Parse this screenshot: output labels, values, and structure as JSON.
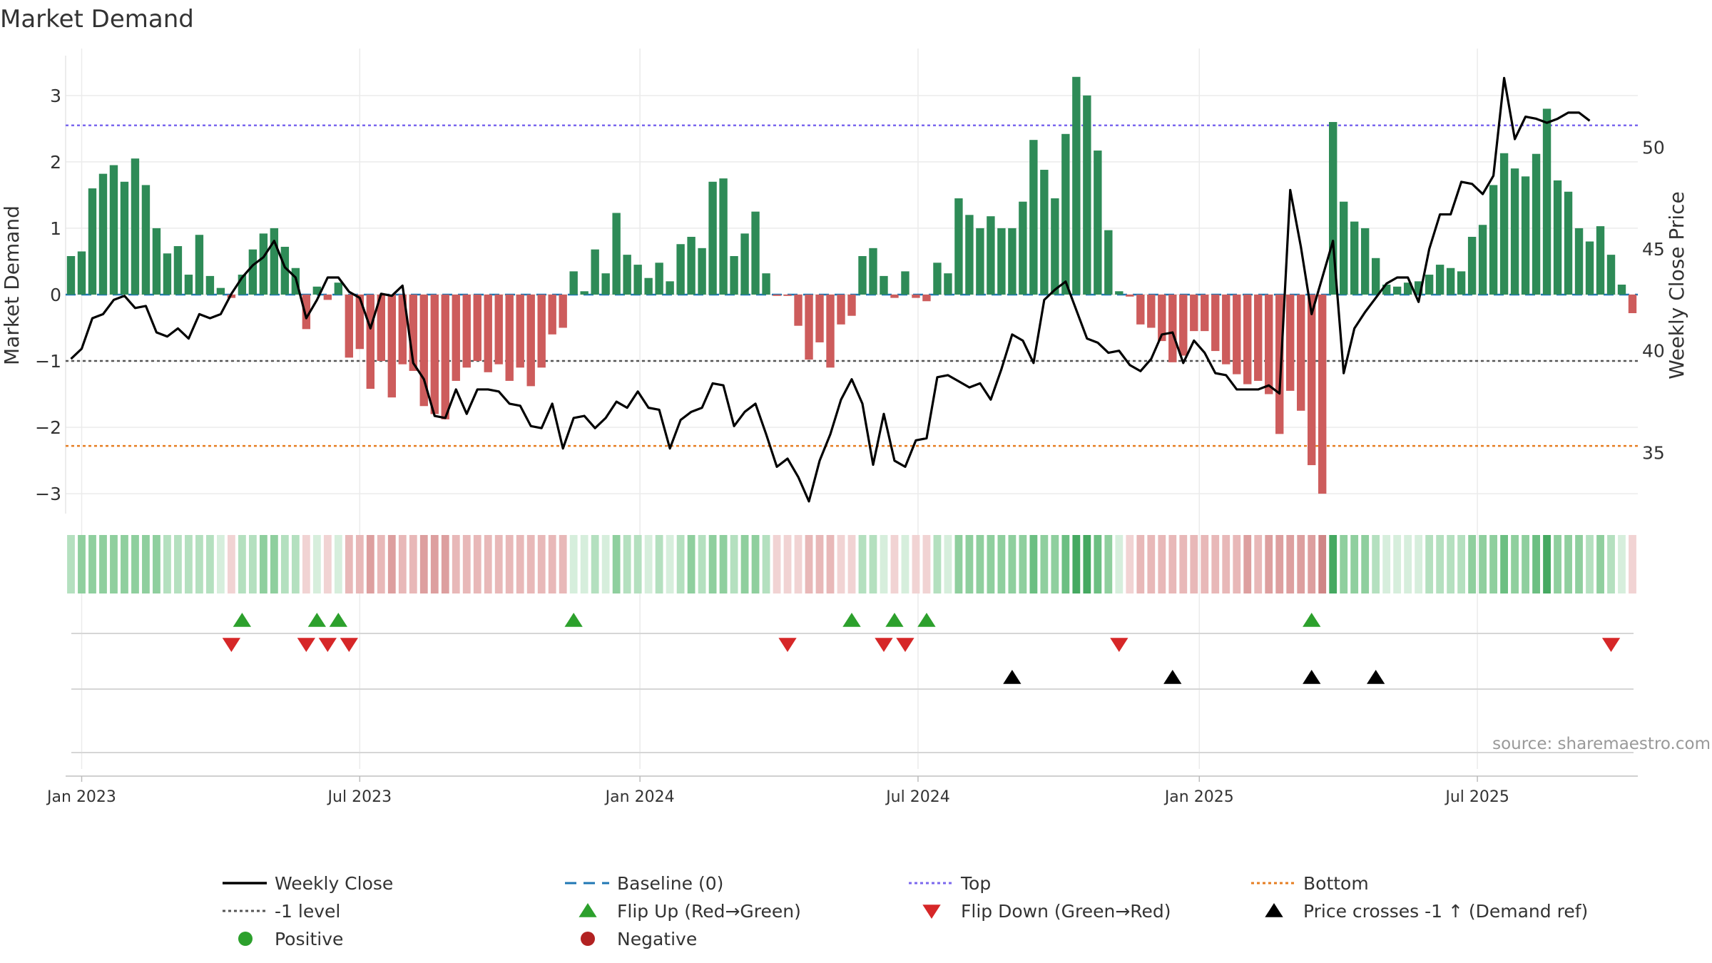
{
  "chart_data": {
    "type": "bar",
    "title": "Market Demand",
    "ylabel": "Market Demand",
    "y2label": "Weekly Close Price",
    "source": "source: sharemaestro.com",
    "ylim": [
      -3.3,
      3.6
    ],
    "y2lim": [
      32.0,
      54.5
    ],
    "yticks": [
      {
        "v": 3,
        "label": "3"
      },
      {
        "v": 2,
        "label": "2"
      },
      {
        "v": 1,
        "label": "1"
      },
      {
        "v": 0,
        "label": "0"
      },
      {
        "v": -1,
        "label": "−1"
      },
      {
        "v": -2,
        "label": "−2"
      },
      {
        "v": -3,
        "label": "−3"
      }
    ],
    "y2ticks": [
      {
        "v": 50,
        "label": "50"
      },
      {
        "v": 45,
        "label": "45"
      },
      {
        "v": 40,
        "label": "40"
      },
      {
        "v": 35,
        "label": "35"
      }
    ],
    "xticks": [
      {
        "week": 1.5,
        "label": "Jan 2023"
      },
      {
        "week": 27.5,
        "label": "Jul 2023"
      },
      {
        "week": 53.7,
        "label": "Jan 2024"
      },
      {
        "week": 79.7,
        "label": "Jul 2024"
      },
      {
        "week": 106,
        "label": "Jan 2025"
      },
      {
        "week": 132,
        "label": "Jul 2025"
      }
    ],
    "levels": {
      "baseline": 0,
      "top": 2.55,
      "minus_one": -1,
      "bottom": -2.28
    },
    "colors": {
      "positive": "#2e8b57",
      "negative": "#cd5c5c",
      "close": "#000000",
      "top": "#7b68ee",
      "bottom": "#e67e22",
      "minus_one": "#555555",
      "baseline": "#1f77b4",
      "flip_up": "#2ca02c",
      "flip_down": "#d62728",
      "cross": "#000000",
      "positive_dot": "#2ca02c",
      "negative_dot": "#b22222"
    },
    "demand": [
      0.58,
      0.65,
      1.6,
      1.82,
      1.95,
      1.7,
      2.05,
      1.65,
      1.0,
      0.62,
      0.73,
      0.3,
      0.9,
      0.28,
      0.1,
      -0.05,
      0.3,
      0.68,
      0.92,
      1.0,
      0.72,
      0.4,
      -0.52,
      0.12,
      -0.08,
      0.18,
      -0.95,
      -0.82,
      -1.42,
      -1.0,
      -1.55,
      -1.05,
      -1.15,
      -1.68,
      -1.8,
      -1.88,
      -1.3,
      -1.1,
      -1.0,
      -1.17,
      -1.05,
      -1.3,
      -1.1,
      -1.38,
      -1.1,
      -0.6,
      -0.5,
      0.35,
      0.05,
      0.68,
      0.32,
      1.23,
      0.6,
      0.45,
      0.25,
      0.48,
      0.2,
      0.76,
      0.87,
      0.7,
      1.7,
      1.75,
      0.58,
      0.92,
      1.25,
      0.32,
      -0.02,
      -0.02,
      -0.47,
      -0.98,
      -0.72,
      -1.1,
      -0.45,
      -0.32,
      0.58,
      0.7,
      0.28,
      -0.05,
      0.35,
      -0.05,
      -0.1,
      0.48,
      0.32,
      1.45,
      1.2,
      1.0,
      1.18,
      1.0,
      1.0,
      1.4,
      2.33,
      1.88,
      1.45,
      2.42,
      3.28,
      3.0,
      2.17,
      0.97,
      0.05,
      -0.03,
      -0.45,
      -0.5,
      -0.7,
      -1.02,
      -0.92,
      -0.55,
      -0.55,
      -0.85,
      -1.05,
      -1.2,
      -1.35,
      -1.3,
      -1.5,
      -2.1,
      -1.45,
      -1.75,
      -2.57,
      -3.0,
      2.6,
      1.4,
      1.1,
      1.0,
      0.55,
      0.15,
      0.12,
      0.18,
      0.2,
      0.3,
      0.45,
      0.4,
      0.35,
      0.87,
      1.05,
      1.65,
      2.13,
      1.9,
      1.78,
      2.12,
      2.8,
      1.72,
      1.55,
      1.0,
      0.8,
      1.03,
      0.6,
      0.15,
      -0.28
    ],
    "close": [
      39.6,
      40.1,
      41.6,
      41.8,
      42.5,
      42.7,
      42.1,
      42.2,
      40.9,
      40.7,
      41.1,
      40.6,
      41.8,
      41.6,
      41.8,
      42.8,
      43.6,
      44.2,
      44.6,
      45.4,
      44.1,
      43.6,
      41.6,
      42.5,
      43.6,
      43.6,
      42.9,
      42.6,
      41.1,
      42.8,
      42.7,
      43.2,
      39.4,
      38.6,
      36.8,
      36.7,
      38.1,
      36.9,
      38.1,
      38.1,
      38.0,
      37.4,
      37.3,
      36.3,
      36.2,
      37.4,
      35.2,
      36.7,
      36.8,
      36.2,
      36.7,
      37.5,
      37.2,
      38.0,
      37.2,
      37.1,
      35.2,
      36.6,
      37.0,
      37.2,
      38.4,
      38.3,
      36.3,
      37.0,
      37.4,
      35.9,
      34.3,
      34.7,
      33.8,
      32.6,
      34.6,
      35.9,
      37.6,
      38.6,
      37.4,
      34.4,
      36.9,
      34.6,
      34.3,
      35.6,
      35.7,
      38.7,
      38.8,
      38.5,
      38.2,
      38.4,
      37.6,
      39.1,
      40.8,
      40.5,
      39.4,
      42.5,
      43.0,
      43.4,
      42.0,
      40.6,
      40.4,
      39.9,
      40.0,
      39.3,
      39.0,
      39.6,
      40.8,
      40.9,
      39.4,
      40.5,
      39.9,
      38.9,
      38.8,
      38.1,
      38.1,
      38.1,
      38.3,
      37.9,
      47.9,
      45.1,
      41.8,
      43.6,
      45.4,
      38.9,
      41.1,
      41.9,
      42.6,
      43.3,
      43.6,
      43.6,
      42.4,
      45.0,
      46.7,
      46.7,
      48.3,
      48.2,
      47.7,
      48.6,
      53.4,
      50.4,
      51.5,
      51.4,
      51.2,
      51.4,
      51.7,
      51.7,
      51.3
    ],
    "strip_levels": [
      2,
      3,
      3,
      3,
      3,
      3,
      3,
      3,
      3,
      2,
      2,
      2,
      2,
      2,
      1,
      -1,
      2,
      2,
      3,
      3,
      2,
      2,
      -1,
      1,
      -1,
      1,
      -2,
      -2,
      -3,
      -2,
      -3,
      -2,
      -2,
      -3,
      -3,
      -3,
      -2,
      -2,
      -2,
      -2,
      -2,
      -2,
      -2,
      -2,
      -2,
      -2,
      -2,
      1,
      1,
      2,
      1,
      3,
      2,
      2,
      1,
      2,
      1,
      2,
      3,
      2,
      3,
      3,
      2,
      3,
      3,
      2,
      -1,
      -1,
      -1,
      -2,
      -2,
      -2,
      -1,
      -1,
      2,
      2,
      1,
      -1,
      1,
      -1,
      -1,
      2,
      1,
      3,
      3,
      3,
      3,
      3,
      3,
      3,
      4,
      3,
      3,
      4,
      5,
      5,
      4,
      3,
      1,
      -1,
      -2,
      -2,
      -2,
      -2,
      -2,
      -2,
      -2,
      -2,
      -2,
      -2,
      -3,
      -2,
      -3,
      -3,
      -3,
      -3,
      -3,
      -4,
      5,
      3,
      3,
      3,
      2,
      1,
      1,
      1,
      1,
      2,
      2,
      2,
      2,
      3,
      3,
      3,
      4,
      3,
      3,
      4,
      5,
      3,
      3,
      3,
      2,
      3,
      2,
      1,
      -1
    ],
    "flip_up_weeks": [
      16,
      23,
      25,
      47,
      73,
      77,
      80,
      116
    ],
    "flip_down_weeks": [
      15,
      22,
      24,
      26,
      67,
      76,
      78,
      98,
      144
    ],
    "cross_weeks": [
      88,
      103,
      116,
      122
    ],
    "legend": [
      {
        "key": "close",
        "label": "Weekly Close",
        "marker": "line"
      },
      {
        "key": "baseline",
        "label": "Baseline (0)",
        "marker": "dash"
      },
      {
        "key": "top",
        "label": "Top",
        "marker": "dot"
      },
      {
        "key": "bottom",
        "label": "Bottom",
        "marker": "dot"
      },
      {
        "key": "minus_one",
        "label": "-1 level",
        "marker": "dot"
      },
      {
        "key": "flip_up",
        "label": "Flip Up (Red→Green)",
        "marker": "tri-up"
      },
      {
        "key": "flip_down",
        "label": "Flip Down (Green→Red)",
        "marker": "tri-down"
      },
      {
        "key": "cross",
        "label": "Price crosses -1 ↑ (Demand ref)",
        "marker": "tri-up"
      },
      {
        "key": "positive_dot",
        "label": "Positive",
        "marker": "circle"
      },
      {
        "key": "negative_dot",
        "label": "Negative",
        "marker": "circle"
      }
    ]
  }
}
